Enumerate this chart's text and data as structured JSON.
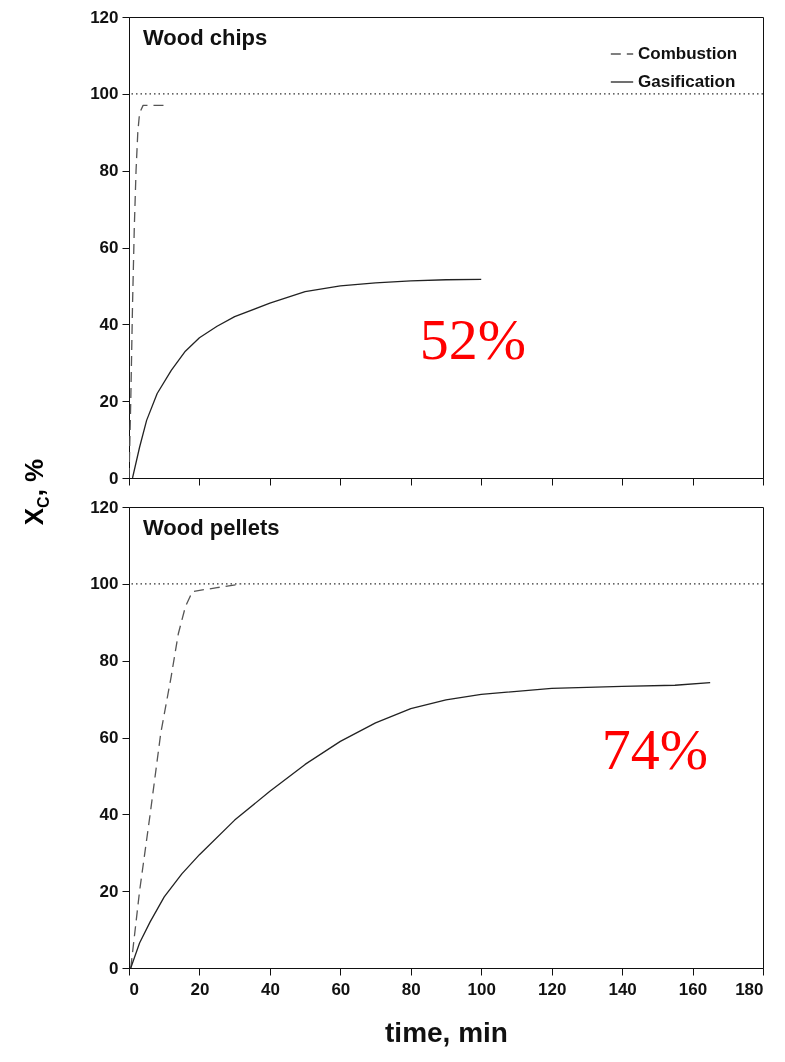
{
  "chart_data": [
    {
      "type": "line",
      "title": "Wood chips",
      "ylabel": "X$_{C}$, %",
      "xlim": [
        0,
        180
      ],
      "xticks": [
        {
          "value": 0,
          "label": null
        },
        {
          "value": 20,
          "label": null
        },
        {
          "value": 40,
          "label": null
        },
        {
          "value": 60,
          "label": null
        },
        {
          "value": 80,
          "label": null
        },
        {
          "value": 100,
          "label": null
        },
        {
          "value": 120,
          "label": null
        },
        {
          "value": 140,
          "label": null
        },
        {
          "value": 160,
          "label": null
        },
        {
          "value": 180,
          "label": null
        }
      ],
      "ylim": [
        0,
        120
      ],
      "yticks": [
        0,
        20,
        40,
        60,
        80,
        100,
        120
      ],
      "tick_labels": "y",
      "legend": "top right",
      "grid": false,
      "ref_lines": [
        {
          "axis": "y",
          "value": 100,
          "color": "#333333",
          "line_style": "dotted"
        }
      ],
      "annotations": [
        "52%"
      ],
      "series": [
        {
          "name": "Combustion",
          "color": "#555555",
          "line_style": "dashed",
          "x": [
            0,
            0.5,
            1,
            1.5,
            2,
            2.5,
            3,
            4,
            10
          ],
          "values": [
            0,
            20,
            45,
            65,
            80,
            90,
            95,
            97,
            97
          ]
        },
        {
          "name": "Gasification",
          "color": "#222222",
          "line_style": "solid",
          "x": [
            1,
            3,
            5,
            8,
            12,
            16,
            20,
            25,
            30,
            40,
            50,
            60,
            70,
            80,
            90,
            100
          ],
          "values": [
            0,
            8,
            15,
            22,
            28,
            33,
            36.5,
            39.5,
            42,
            45.5,
            48.5,
            50,
            50.8,
            51.3,
            51.6,
            51.7
          ]
        }
      ]
    },
    {
      "type": "line",
      "title": "Wood pellets",
      "xlabel": "time, min",
      "xlim": [
        0,
        180
      ],
      "xticks": [
        0,
        20,
        40,
        60,
        80,
        100,
        120,
        140,
        160,
        180
      ],
      "ylim": [
        0,
        120
      ],
      "yticks": [
        0,
        20,
        40,
        60,
        80,
        100,
        120
      ],
      "grid": false,
      "ref_lines": [
        {
          "axis": "y",
          "value": 100,
          "color": "#333333",
          "line_style": "dotted"
        }
      ],
      "annotations": [
        "74%"
      ],
      "series": [
        {
          "color": "#555555",
          "line_style": "dashed",
          "x": [
            0.5,
            3,
            6,
            9,
            12,
            14,
            16,
            18,
            25,
            32
          ],
          "values": [
            0,
            20,
            40,
            61,
            76,
            87,
            94,
            98,
            99,
            100
          ]
        },
        {
          "color": "#222222",
          "line_style": "solid",
          "x": [
            0.5,
            3,
            6,
            10,
            15,
            20,
            30,
            40,
            50,
            60,
            70,
            80,
            90,
            100,
            120,
            140,
            155,
            165
          ],
          "values": [
            0,
            6.5,
            12,
            18.5,
            24.5,
            29.5,
            38.5,
            46,
            53,
            59,
            63.8,
            67.5,
            69.8,
            71.2,
            72.8,
            73.3,
            73.6,
            74.3
          ]
        }
      ]
    }
  ]
}
